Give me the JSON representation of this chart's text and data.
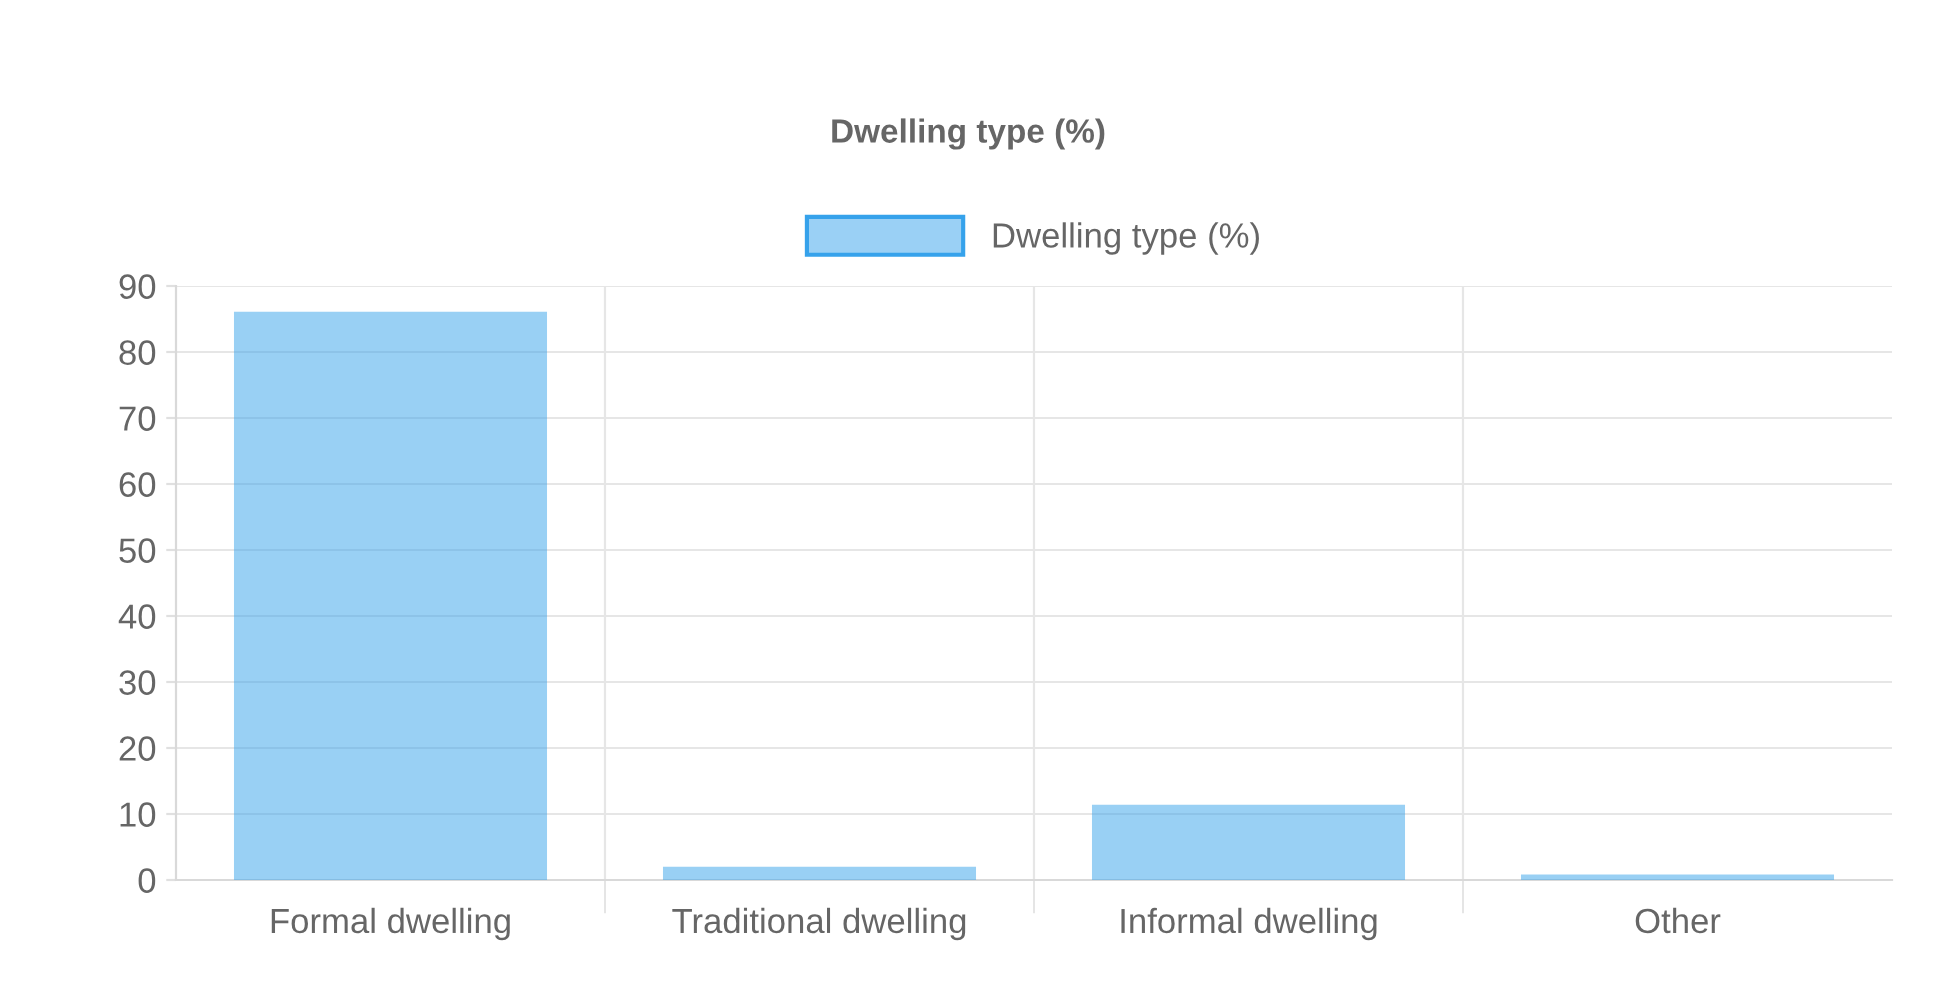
{
  "chart_data": {
    "type": "bar",
    "title": "Dwelling type (%)",
    "categories": [
      "Formal dwelling",
      "Traditional dwelling",
      "Informal dwelling",
      "Other"
    ],
    "series": [
      {
        "name": "Dwelling type (%)",
        "color": "#36a2eb",
        "values": [
          85.8,
          1.7,
          11.1,
          0.5
        ]
      }
    ],
    "ylim": [
      0,
      90
    ],
    "yticks": [
      0,
      10,
      20,
      30,
      40,
      50,
      60,
      70,
      80,
      90
    ],
    "grid": true,
    "legend": "top"
  }
}
